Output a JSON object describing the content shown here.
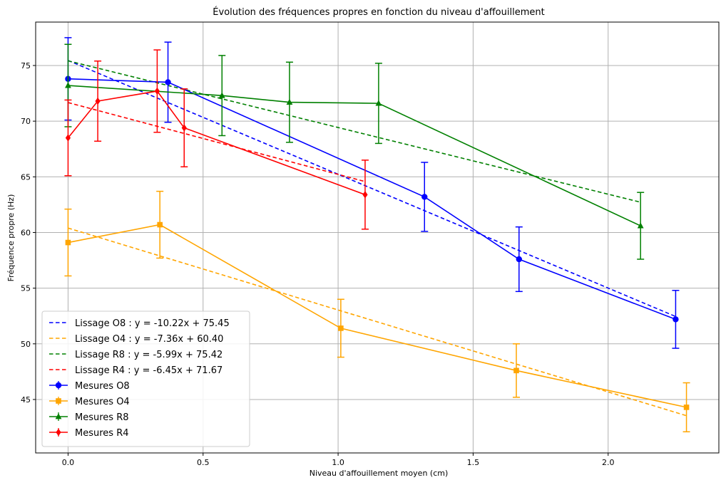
{
  "chart_data": {
    "type": "line",
    "title": "Évolution des fréquences propres en fonction du niveau d'affouillement",
    "xlabel": "Niveau d'affouillement moyen (cm)",
    "ylabel": "Fréquence propre (Hz)",
    "xlim": [
      -0.12,
      2.41
    ],
    "ylim": [
      40.2,
      78.9
    ],
    "xticks": [
      0.0,
      0.5,
      1.0,
      1.5,
      2.0
    ],
    "xtick_labels": [
      "0.0",
      "0.5",
      "1.0",
      "1.5",
      "2.0"
    ],
    "yticks": [
      45,
      50,
      55,
      60,
      65,
      70,
      75
    ],
    "ytick_labels": [
      "45",
      "50",
      "55",
      "60",
      "65",
      "70",
      "75"
    ],
    "grid": true,
    "legend_position": "lower-left",
    "measure_series": [
      {
        "name": "Mesures O8",
        "color": "#0000ff",
        "marker": "circle",
        "x": [
          0.0,
          0.37,
          1.32,
          1.67,
          2.25
        ],
        "y": [
          73.8,
          73.5,
          63.2,
          57.6,
          52.2
        ],
        "err": [
          3.7,
          3.6,
          3.1,
          2.9,
          2.6
        ]
      },
      {
        "name": "Mesures O4",
        "color": "#ffa500",
        "marker": "square",
        "x": [
          0.0,
          0.34,
          1.01,
          1.66,
          2.29
        ],
        "y": [
          59.1,
          60.7,
          51.4,
          47.6,
          44.3
        ],
        "err": [
          3.0,
          3.0,
          2.6,
          2.4,
          2.2
        ]
      },
      {
        "name": "Mesures R8",
        "color": "#008000",
        "marker": "triangle",
        "x": [
          0.0,
          0.57,
          0.82,
          1.15,
          2.12
        ],
        "y": [
          73.2,
          72.3,
          71.7,
          71.6,
          60.6
        ],
        "err": [
          3.7,
          3.6,
          3.6,
          3.6,
          3.0
        ]
      },
      {
        "name": "Mesures R4",
        "color": "#ff0000",
        "marker": "diamond",
        "x": [
          0.0,
          0.11,
          0.33,
          0.43,
          1.1
        ],
        "y": [
          68.5,
          71.8,
          72.7,
          69.4,
          63.4
        ],
        "err": [
          3.4,
          3.6,
          3.7,
          3.5,
          3.1
        ]
      }
    ],
    "fit_series": [
      {
        "name": "Lissage O8 : y = -10.22x + 75.45",
        "color": "#0000ff",
        "slope": -10.22,
        "intercept": 75.45,
        "x_range": [
          0.0,
          2.25
        ]
      },
      {
        "name": "Lissage O4 : y = -7.36x + 60.40",
        "color": "#ffa500",
        "slope": -7.36,
        "intercept": 60.4,
        "x_range": [
          0.0,
          2.29
        ]
      },
      {
        "name": "Lissage R8 : y = -5.99x + 75.42",
        "color": "#008000",
        "slope": -5.99,
        "intercept": 75.42,
        "x_range": [
          0.0,
          2.12
        ]
      },
      {
        "name": "Lissage R4 : y = -6.45x + 71.67",
        "color": "#ff0000",
        "slope": -6.45,
        "intercept": 71.67,
        "x_range": [
          0.0,
          1.1
        ]
      }
    ]
  }
}
